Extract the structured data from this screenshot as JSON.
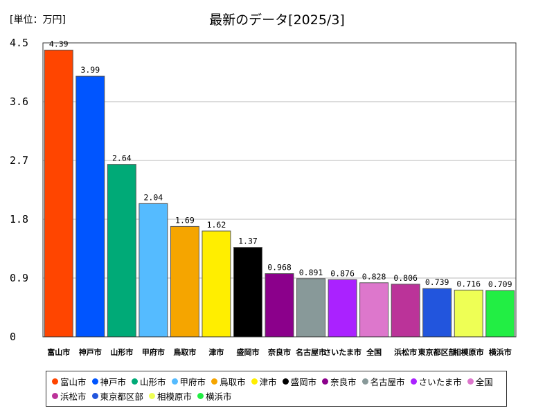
{
  "unit_label": "[単位：万円]",
  "chart_data": {
    "type": "bar",
    "title": "最新のデータ[2025/3]",
    "xlabel": "",
    "ylabel": "",
    "ylim": [
      0,
      4.5
    ],
    "yticks": [
      "0",
      "0.9",
      "1.8",
      "2.7",
      "3.6",
      "4.5"
    ],
    "ytick_values": [
      0,
      0.9,
      1.8,
      2.7,
      3.6,
      4.5
    ],
    "grid": true,
    "legend_position": "bottom",
    "categories": [
      "富山市",
      "神戸市",
      "山形市",
      "甲府市",
      "鳥取市",
      "津市",
      "盛岡市",
      "奈良市",
      "名古屋市",
      "さいたま市",
      "全国",
      "浜松市",
      "東京都区部",
      "相模原市",
      "横浜市"
    ],
    "values": [
      4.39,
      3.99,
      2.64,
      2.04,
      1.69,
      1.62,
      1.37,
      0.968,
      0.891,
      0.876,
      0.828,
      0.806,
      0.739,
      0.716,
      0.709
    ],
    "value_labels": [
      "4.39",
      "3.99",
      "2.64",
      "2.04",
      "1.69",
      "1.62",
      "1.37",
      "0.968",
      "0.891",
      "0.876",
      "0.828",
      "0.806",
      "0.739",
      "0.716",
      "0.709"
    ],
    "colors": [
      "#ff4500",
      "#0055ff",
      "#00aa77",
      "#55bbff",
      "#f5a500",
      "#ffee00",
      "#000000",
      "#8b008b",
      "#889999",
      "#aa22ff",
      "#dd77cc",
      "#bb3399",
      "#2255dd",
      "#eeff55",
      "#22ee44"
    ]
  }
}
